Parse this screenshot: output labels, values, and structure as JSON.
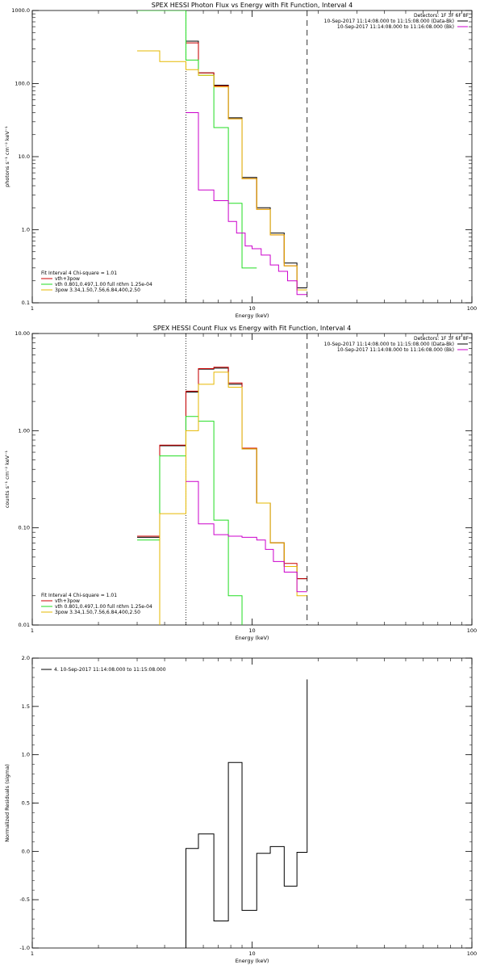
{
  "colors": {
    "black": "#000000",
    "red": "#cc0000",
    "green": "#22dd22",
    "yellow": "#e6b800",
    "magenta": "#cc00cc"
  },
  "chart_data": [
    {
      "type": "line",
      "title": "SPEX HESSI Photon Flux vs Energy with Fit Function, Interval 4",
      "xlabel": "Energy (keV)",
      "ylabel": "photons s⁻¹ cm⁻² keV⁻¹",
      "xscale": "log",
      "yscale": "log",
      "xlim": [
        1,
        100
      ],
      "ylim": [
        0.1,
        1000
      ],
      "xticks": [
        1,
        10,
        100
      ],
      "xtick_labels": [
        "1",
        "10",
        "100"
      ],
      "yticks": [
        0.1,
        1,
        10,
        100,
        1000
      ],
      "ytick_labels": [
        "0.1",
        "1.0",
        "10.0",
        "100.0",
        "1000.0"
      ],
      "vlines": [
        {
          "x": 5.0,
          "style": "dotted"
        },
        {
          "x": 17.8,
          "style": "dashed"
        }
      ],
      "info": {
        "detectors": "Detectors: 1F 3F 6F 8F",
        "lines": [
          "10-Sep-2017 11:14:08.000 to 11:15:08.000 (Data-Bk)",
          "10-Sep-2017 11:14:08.000 to 11:16:08.000 (Bk)"
        ]
      },
      "legend": {
        "header": "Fit Interval 4   Chi-square = 1.01",
        "entries": [
          "vth+3pow",
          "vth 0.801,0.497,1.00  full nthm 1.25e-04",
          "3pow 3.34,1.50,7.56,6.84,400,2.50"
        ]
      },
      "series": [
        {
          "color_key": "black",
          "edges": [
            5.0,
            5.7,
            6.7,
            7.8,
            9.0,
            10.5,
            12.1,
            14.0,
            16.0,
            17.8
          ],
          "values": [
            380,
            140,
            95,
            34,
            5.2,
            2.0,
            0.9,
            0.35,
            0.16
          ]
        },
        {
          "color_key": "red",
          "edges": [
            5.0,
            5.7,
            6.7,
            7.8,
            9.0,
            10.5,
            12.1,
            14.0,
            16.0,
            17.8
          ],
          "values": [
            360,
            140,
            93,
            33,
            5.0,
            1.9,
            0.85,
            0.32,
            0.15
          ]
        },
        {
          "color_key": "green",
          "edges": [
            3.0,
            5.0,
            5.7,
            6.7,
            7.8,
            9.0,
            10.5
          ],
          "values": [
            1000,
            210,
            130,
            25,
            2.3,
            0.3
          ]
        },
        {
          "color_key": "yellow",
          "edges": [
            3.0,
            3.8,
            5.0,
            5.7,
            6.7,
            7.8,
            9.0,
            10.5,
            12.1,
            14.0,
            16.0,
            17.8
          ],
          "values": [
            280,
            200,
            155,
            130,
            90,
            33,
            5.0,
            1.9,
            0.85,
            0.32,
            0.15
          ]
        },
        {
          "color_key": "magenta",
          "edges": [
            5.0,
            5.7,
            6.7,
            7.8,
            8.5,
            9.3,
            10.0,
            11.0,
            12.1,
            13.2,
            14.5,
            16.0,
            17.8
          ],
          "values": [
            40,
            3.5,
            2.5,
            1.3,
            0.9,
            0.6,
            0.55,
            0.45,
            0.33,
            0.27,
            0.2,
            0.13
          ]
        }
      ]
    },
    {
      "type": "line",
      "title": "SPEX HESSI Count Flux vs Energy with Fit Function, Interval 4",
      "xlabel": "Energy (keV)",
      "ylabel": "counts s⁻¹ cm⁻² keV⁻¹",
      "xscale": "log",
      "yscale": "log",
      "xlim": [
        1,
        100
      ],
      "ylim": [
        0.01,
        10
      ],
      "xticks": [
        1,
        10,
        100
      ],
      "xtick_labels": [
        "1",
        "10",
        "100"
      ],
      "yticks": [
        0.01,
        0.1,
        1,
        10
      ],
      "ytick_labels": [
        "0.01",
        "0.10",
        "1.00",
        "10.00"
      ],
      "vlines": [
        {
          "x": 5.0,
          "style": "dotted"
        },
        {
          "x": 17.8,
          "style": "dashed"
        }
      ],
      "info": {
        "detectors": "Detectors: 1F 3F 6F 8F",
        "lines": [
          "10-Sep-2017 11:14:08.000 to 11:15:08.000 (Data-Bk)",
          "10-Sep-2017 11:14:08.000 to 11:16:08.000 (Bk)"
        ]
      },
      "legend": {
        "header": "Fit Interval 4   Chi-square = 1.01",
        "entries": [
          "vth+3pow",
          "vth 0.801,0.497,1.00  full nthm 1.25e-04",
          "3pow 3.34,1.50,7.56,6.84,400,2.50"
        ]
      },
      "series": [
        {
          "color_key": "black",
          "edges": [
            3.0,
            3.8,
            5.0,
            5.7,
            6.7,
            7.8,
            9.0,
            10.5,
            12.1,
            14.0,
            16.0,
            17.8
          ],
          "values": [
            0.08,
            0.7,
            2.5,
            4.3,
            4.4,
            3.0,
            0.65,
            0.18,
            0.07,
            0.04,
            0.03
          ]
        },
        {
          "color_key": "red",
          "edges": [
            3.0,
            3.8,
            5.0,
            5.7,
            6.7,
            7.8,
            9.0,
            10.5,
            12.1,
            14.0,
            16.0,
            17.8
          ],
          "values": [
            0.082,
            0.71,
            2.55,
            4.35,
            4.5,
            3.1,
            0.66,
            0.18,
            0.07,
            0.043,
            0.03
          ]
        },
        {
          "color_key": "green",
          "edges": [
            3.0,
            3.8,
            5.0,
            5.7,
            6.7,
            7.8,
            9.0,
            10.5
          ],
          "values": [
            0.075,
            0.55,
            1.4,
            1.25,
            0.12,
            0.02,
            0.001
          ]
        },
        {
          "color_key": "yellow",
          "edges": [
            3.0,
            3.8,
            5.0,
            5.7,
            6.7,
            7.8,
            9.0,
            10.5,
            12.1,
            14.0,
            16.0,
            17.8
          ],
          "values": [
            0.001,
            0.14,
            1.0,
            3.0,
            4.0,
            2.8,
            0.65,
            0.18,
            0.07,
            0.04,
            0.02
          ]
        },
        {
          "color_key": "magenta",
          "edges": [
            5.0,
            5.7,
            6.7,
            7.8,
            9.0,
            10.5,
            11.5,
            12.5,
            14.0,
            16.0,
            17.8
          ],
          "values": [
            0.3,
            0.11,
            0.085,
            0.082,
            0.08,
            0.075,
            0.06,
            0.045,
            0.035,
            0.022
          ]
        }
      ]
    },
    {
      "type": "line",
      "title": "",
      "xlabel": "Energy (keV)",
      "ylabel": "Normalized Residuals (sigma)",
      "xscale": "log",
      "yscale": "linear",
      "xlim": [
        1,
        100
      ],
      "ylim": [
        -1.0,
        2.0
      ],
      "xticks": [
        1,
        10,
        100
      ],
      "xtick_labels": [
        "1",
        "10",
        "100"
      ],
      "yticks": [
        -1.0,
        -0.5,
        0.0,
        0.5,
        1.0,
        1.5,
        2.0
      ],
      "ytick_labels": [
        "-1.0",
        "-0.5",
        "0.0",
        "0.5",
        "1.0",
        "1.5",
        "2.0"
      ],
      "legend": {
        "entries": [
          "4. 10-Sep-2017 11:14:08.000 to 11:15:08.000"
        ]
      },
      "series": [
        {
          "color_key": "black",
          "drop_to": -1.0,
          "edges": [
            5.0,
            5.7,
            6.7,
            7.8,
            9.0,
            10.5,
            12.1,
            14.0,
            16.0,
            17.8
          ],
          "values": [
            0.03,
            0.18,
            -0.72,
            0.92,
            -0.61,
            -0.02,
            0.05,
            -0.36,
            -0.01,
            1.78
          ]
        }
      ]
    }
  ]
}
